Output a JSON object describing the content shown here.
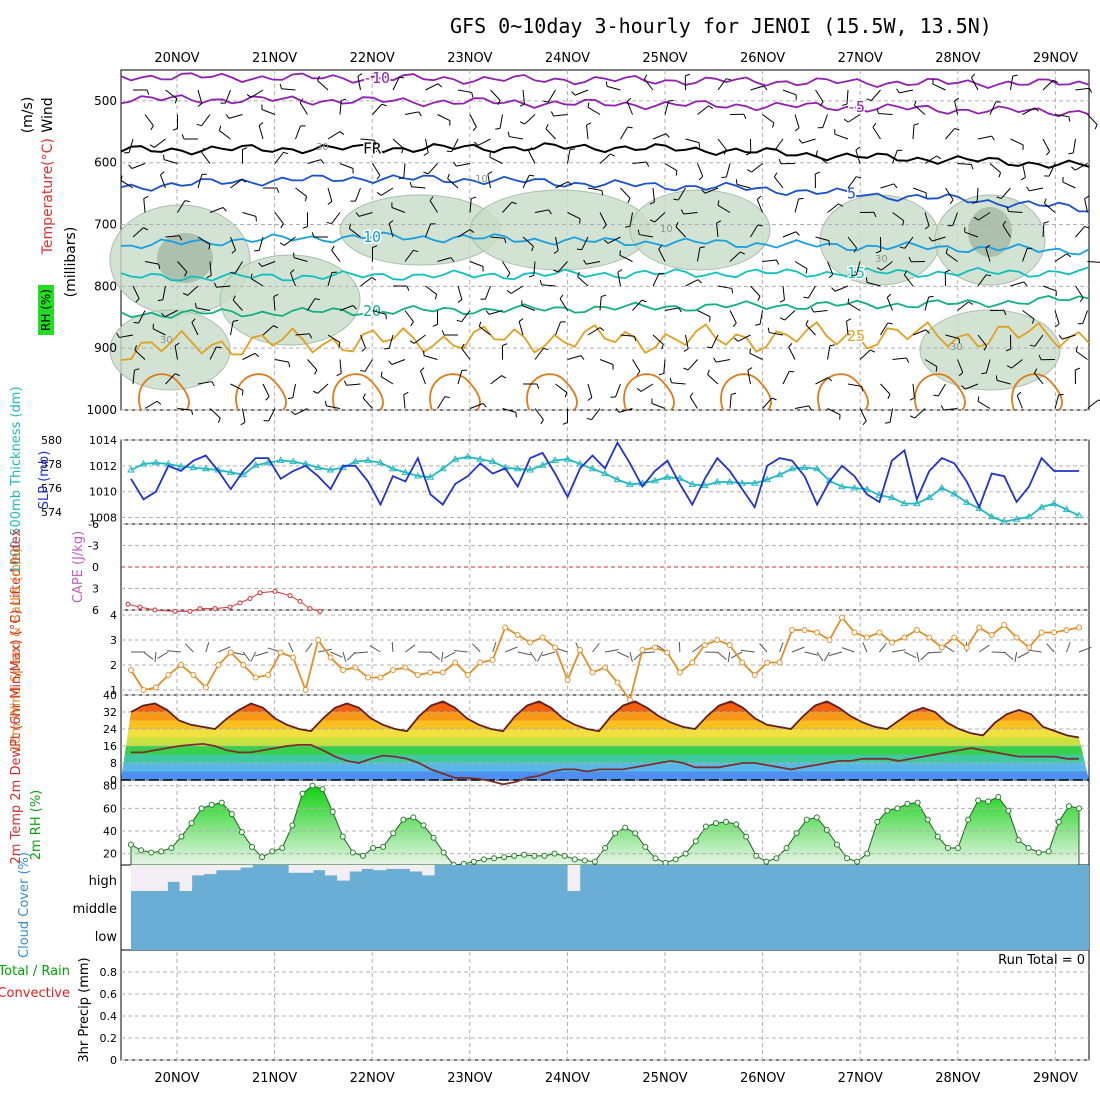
{
  "title": "GFS 0~10day 3-hourly for JENOI (15.5W, 13.5N)",
  "colors": {
    "grid": "#b0b0b0",
    "rh_fill": "#c8dcc8",
    "slp": "#2233cc",
    "thickness": "#22b8c0",
    "lifted_index": "#d23232",
    "cape": "#c060c0",
    "wind": "#e0902a",
    "temp_high": "#d42010",
    "dewpoint": "#7a3030",
    "rh2m": "#18c018",
    "cloud": "#6aaed6",
    "cloud_clear": "#f2eef4",
    "precip_total": "#00a000",
    "precip_conv": "#e02020",
    "purple": "#9020b0",
    "blue5": "#1850d0",
    "blue10": "#18a0e0",
    "teal15": "#10c0c0",
    "green20": "#10b080",
    "orange25": "#e0a020"
  },
  "chart_data": [
    {
      "panel": "upper-air",
      "type": "contour",
      "y_label_parts": [
        "Wind",
        "(m/s)",
        "Temperature",
        "(°C)"
      ],
      "y_label_secondary": "(millibars)",
      "rh_label": "RH (%)",
      "dates": [
        "20NOV",
        "21NOV",
        "22NOV",
        "23NOV",
        "24NOV",
        "25NOV",
        "26NOV",
        "27NOV",
        "28NOV",
        "29NOV"
      ],
      "y_ticks": [
        500,
        600,
        700,
        800,
        900,
        1000
      ],
      "y_tick_labels": [
        "500",
        "600",
        "700",
        "800",
        "900",
        "1000"
      ],
      "ylim": [
        450,
        1000
      ],
      "contours": [
        {
          "name": "-10",
          "label": "-10",
          "levels": [
            460,
            462,
            463,
            465,
            466,
            468,
            470,
            471,
            472
          ]
        },
        {
          "name": "-5",
          "label": "-5",
          "levels": [
            497,
            498,
            500,
            502,
            505,
            507,
            510,
            515,
            518
          ]
        },
        {
          "name": "FR",
          "label": "FR",
          "levels": [
            580,
            578,
            577,
            576,
            575,
            580,
            590,
            596,
            605
          ]
        },
        {
          "name": "5",
          "label": "5",
          "levels": [
            640,
            630,
            625,
            628,
            635,
            640,
            650,
            660,
            675
          ]
        },
        {
          "name": "10",
          "label": "10",
          "levels": [
            735,
            725,
            720,
            722,
            728,
            730,
            735,
            738,
            742
          ]
        },
        {
          "name": "15",
          "label": "15",
          "levels": [
            785,
            785,
            783,
            782,
            780,
            779,
            778,
            778,
            777
          ]
        },
        {
          "name": "20",
          "label": "20",
          "levels": [
            845,
            843,
            840,
            838,
            835,
            832,
            830,
            828,
            820
          ]
        },
        {
          "name": "25",
          "label": "25",
          "levels": [
            900,
            892,
            888,
            885,
            885,
            885,
            880,
            880,
            878
          ]
        }
      ],
      "rh_labels": [
        "30",
        "10",
        "10",
        "30",
        "30",
        "30"
      ]
    },
    {
      "panel": "slp-thickness",
      "type": "line",
      "y_label_left": "1000-500mb Thickness (dm)",
      "y_label_right": "SLP (mb)",
      "left_ticks": [
        "580",
        "578",
        "576",
        "574"
      ],
      "left_range": [
        573,
        580
      ],
      "right_ticks": [
        "1014",
        "1012",
        "1010",
        "1008"
      ],
      "right_range": [
        1007.5,
        1014
      ],
      "slp": [
        1011,
        1009.4,
        1010,
        1012,
        1011.6,
        1012.4,
        1012.8,
        1011.6,
        1010.2,
        1011.6,
        1012.6,
        1012.6,
        1011,
        1011.6,
        1012,
        1011.2,
        1010.2,
        1012,
        1012,
        1010.8,
        1009,
        1011.2,
        1010.8,
        1012.6,
        1009.8,
        1009,
        1010.6,
        1011.2,
        1012.2,
        1011.4,
        1011.8,
        1010.4,
        1012.6,
        1013,
        1011.4,
        1009.6,
        1011.8,
        1012.8,
        1011.8,
        1013.8,
        1012.2,
        1010.4,
        1011.6,
        1012.4,
        1010.6,
        1009,
        1011,
        1012.6,
        1011.6,
        1010.2,
        1008.8,
        1012,
        1012.6,
        1012.4,
        1011.2,
        1009,
        1010.8,
        1012,
        1011.2,
        1009.8,
        1009.2,
        1012.4,
        1013.2,
        1009.4,
        1011.6,
        1012.6,
        1012.2,
        1010.8,
        1008.8,
        1011.4,
        1011.2,
        1009.2,
        1010.4,
        1012.6,
        1011.6,
        1011.6,
        1011.6
      ],
      "thickness": [
        577.5,
        578,
        578.1,
        578,
        577.8,
        577.7,
        577.6,
        577.5,
        577.3,
        577.1,
        577.9,
        578.1,
        578.3,
        578.2,
        578,
        577.7,
        577.5,
        577.7,
        578.2,
        578.3,
        578.1,
        577.6,
        577.3,
        577,
        576.9,
        577.6,
        578.4,
        578.6,
        578.4,
        578.2,
        577.7,
        577.6,
        577.5,
        577.9,
        578.3,
        578.4,
        578,
        577.6,
        577.2,
        576.7,
        576.3,
        576.4,
        576.6,
        576.9,
        576.8,
        576.3,
        576.2,
        576.5,
        576.5,
        576.4,
        576.4,
        576.7,
        577.1,
        577.6,
        577.7,
        577.6,
        576.6,
        576.1,
        576,
        575.9,
        575.4,
        575.2,
        574.7,
        574.7,
        575.2,
        576,
        575.5,
        574.8,
        574.3,
        573.6,
        573.2,
        573.4,
        573.6,
        574.4,
        574.7,
        574.2,
        573.7
      ]
    },
    {
      "panel": "lifted-index-cape",
      "type": "line",
      "y_label_left": "Lifted Index",
      "y_label_right": "CAPE (J/kg)",
      "y_ticks": [
        "-6",
        "-3",
        "0",
        "3",
        "6"
      ],
      "ylim": [
        -6,
        6
      ],
      "lifted_index": [
        5.2,
        5.6,
        6,
        6.2,
        6.2,
        5.8,
        5.8,
        5.6,
        5,
        4.4,
        3.6,
        3.4,
        4,
        4.8,
        5.8,
        6.2,
        6,
        4.8,
        3.2,
        3,
        3.2,
        3.2,
        4.4,
        5.6,
        6.2
      ]
    },
    {
      "panel": "wind10m",
      "type": "line",
      "y_label": "10m Wind Speed & Barbs (m/s)",
      "y_ticks": [
        "1",
        "2",
        "3",
        "4"
      ],
      "ylim": [
        0.8,
        4.2
      ],
      "speed": [
        1.8,
        1,
        1.1,
        1.6,
        2,
        1.6,
        1.1,
        2,
        2.5,
        2,
        1.5,
        1.6,
        2.5,
        2.3,
        1,
        3,
        2.3,
        1.8,
        1.9,
        1.5,
        1.5,
        1.8,
        1.9,
        1.6,
        1.7,
        1.7,
        2.1,
        1.6,
        2.1,
        2.2,
        3.5,
        3.2,
        2.9,
        3.1,
        2.7,
        1.4,
        2.6,
        1.7,
        1.9,
        1.3,
        0.6,
        2.6,
        2.7,
        2.5,
        1.7,
        2.1,
        2.8,
        3,
        2.8,
        2.1,
        1.6,
        2.1,
        2.1,
        3.4,
        3.4,
        3.3,
        3,
        3.9,
        3.3,
        3.1,
        3.3,
        2.9,
        3.1,
        3.4,
        3.1,
        2.7,
        3.1,
        2.7,
        3.5,
        3.2,
        3.6,
        3.1,
        2.7,
        3.3,
        3.3,
        3.4,
        3.5
      ]
    },
    {
      "panel": "temp2m",
      "type": "area",
      "y_label": "2m Temp 2m DewPt (6hr Min/Max) (°C)",
      "y_ticks": [
        "0",
        "8",
        "16",
        "24",
        "32",
        "40"
      ],
      "ylim": [
        0,
        40
      ],
      "temp": [
        32,
        35,
        36,
        33,
        28,
        26,
        25,
        24,
        29,
        33,
        36,
        34,
        29,
        26,
        24,
        23,
        29,
        34,
        36,
        34,
        29,
        26,
        24,
        23,
        30,
        35,
        37,
        34,
        29,
        26,
        24,
        23,
        30,
        35,
        37,
        34,
        29,
        26,
        24,
        23,
        30,
        35,
        37,
        34,
        30,
        27,
        25,
        24,
        30,
        35,
        37,
        34,
        29,
        26,
        25,
        24,
        30,
        35,
        37,
        34,
        30,
        27,
        25,
        24,
        28,
        32,
        34,
        32,
        27,
        24,
        22,
        21,
        27,
        31,
        33,
        31,
        25,
        23,
        21,
        20
      ],
      "dewpoint": [
        13,
        13,
        14,
        15,
        16,
        16.5,
        17,
        16,
        14,
        13,
        13,
        14,
        15,
        16,
        16.5,
        16.5,
        14,
        11,
        9,
        8,
        10,
        11.5,
        11,
        10,
        8,
        5,
        3,
        1,
        1,
        0.5,
        -0.5,
        -2,
        -1,
        1,
        2,
        4,
        5,
        5,
        4,
        5,
        5,
        5,
        6,
        7,
        8,
        9,
        8,
        6,
        6,
        6,
        7,
        8,
        8,
        7,
        6,
        5,
        6,
        7,
        8,
        9,
        9,
        10,
        10,
        10,
        9,
        10,
        11,
        12,
        13,
        14,
        15,
        14,
        13,
        12,
        11,
        11,
        11,
        11,
        10,
        10
      ]
    },
    {
      "panel": "rh2m",
      "type": "area",
      "y_label": "2m RH (%)",
      "y_ticks": [
        "20",
        "40",
        "60",
        "80"
      ],
      "ylim": [
        10,
        85
      ],
      "rh": [
        28,
        23,
        21,
        22,
        25,
        35,
        47,
        60,
        63,
        65,
        55,
        39,
        26,
        17,
        22,
        25,
        45,
        73,
        80,
        77,
        57,
        35,
        21,
        18,
        25,
        26,
        38,
        50,
        52,
        45,
        34,
        21,
        10,
        11,
        13,
        15,
        16,
        17,
        18,
        19,
        18,
        18,
        20,
        18,
        15,
        14,
        13,
        25,
        38,
        43,
        38,
        26,
        16,
        12,
        15,
        20,
        31,
        44,
        47,
        48,
        46,
        35,
        18,
        13,
        16,
        25,
        38,
        50,
        52,
        41,
        28,
        16,
        13,
        20,
        48,
        58,
        60,
        64,
        65,
        50,
        35,
        25,
        25,
        50,
        67,
        66,
        70,
        58,
        32,
        25,
        21,
        22,
        48,
        62,
        60
      ]
    },
    {
      "panel": "cloud-cover",
      "type": "heatmap",
      "y_label": "Cloud Cover (%)",
      "row_labels": [
        "high",
        "middle",
        "low"
      ],
      "high_clear_fraction": [
        1,
        1,
        1,
        0.65,
        1,
        0.4,
        0.35,
        0.2,
        0.2,
        0.1,
        0,
        0,
        0,
        0.3,
        0.3,
        0.2,
        0.4,
        0.6,
        0.25,
        0.15,
        0.2,
        0.15,
        0.15,
        0.25,
        0.4,
        0,
        0,
        0,
        0,
        0,
        0,
        0,
        0,
        0,
        0,
        0,
        1,
        0,
        0,
        0,
        0,
        0,
        0,
        0,
        0,
        0,
        0,
        0,
        0,
        0,
        0,
        0,
        0,
        0,
        0,
        0,
        0,
        0,
        0,
        0,
        0,
        0,
        0,
        0,
        0,
        0,
        0,
        0,
        0,
        0,
        0,
        0,
        0,
        0,
        0,
        0,
        0,
        0,
        0
      ]
    },
    {
      "panel": "precip",
      "type": "bar",
      "y_label": "3hr Precip (mm)",
      "legend_total": "Total / Rain",
      "legend_conv": "Convective",
      "run_total": "Run Total = 0",
      "y_ticks": [
        "0",
        "0.2",
        "0.4",
        "0.6",
        "0.8"
      ],
      "ylim": [
        0,
        1
      ],
      "values": []
    }
  ]
}
